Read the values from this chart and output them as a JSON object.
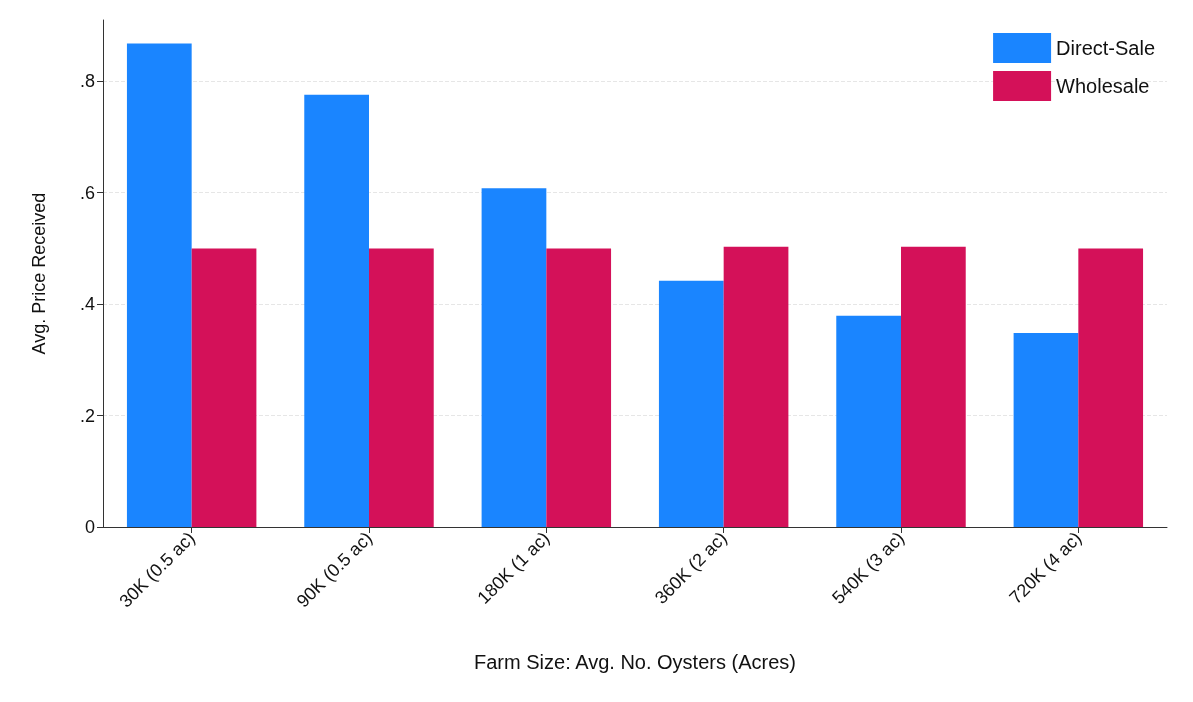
{
  "chart_data": {
    "type": "bar",
    "xlabel": "Farm Size: Avg. No. Oysters (Acres)",
    "ylabel": "Avg. Price Received",
    "categories": [
      "30K (0.5 ac)",
      "90K (0.5 ac)",
      "180K (1 ac)",
      "360K (2 ac)",
      "540K (3 ac)",
      "720K (4 ac)"
    ],
    "series": [
      {
        "name": "Direct-Sale",
        "color": "#1a85ff",
        "values": [
          0.868,
          0.776,
          0.608,
          0.442,
          0.379,
          0.348
        ]
      },
      {
        "name": "Wholesale",
        "color": "#d41159",
        "values": [
          0.5,
          0.5,
          0.5,
          0.503,
          0.503,
          0.5
        ]
      }
    ],
    "ylim": [
      0,
      0.91
    ],
    "yticks": [
      {
        "value": 0,
        "label": "0"
      },
      {
        "value": 0.2,
        "label": ".2"
      },
      {
        "value": 0.4,
        "label": ".4"
      },
      {
        "value": 0.6,
        "label": ".6"
      },
      {
        "value": 0.8,
        "label": ".8"
      }
    ],
    "grid": "y",
    "legend": "top right"
  }
}
